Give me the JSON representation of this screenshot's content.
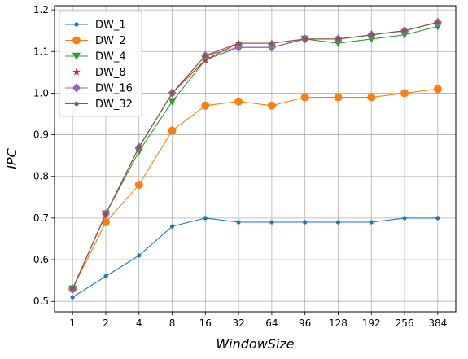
{
  "chart_data": {
    "type": "line",
    "title": "",
    "xlabel": "WindowSize",
    "ylabel": "IPC",
    "categories": [
      "1",
      "2",
      "4",
      "8",
      "16",
      "32",
      "64",
      "96",
      "128",
      "192",
      "256",
      "384"
    ],
    "ylim": [
      0.475,
      1.21
    ],
    "yticks": [
      0.5,
      0.6,
      0.7,
      0.8,
      0.9,
      1.0,
      1.1,
      1.2
    ],
    "ytick_labels": [
      "0.5",
      "0.6",
      "0.7",
      "0.8",
      "0.9",
      "1.0",
      "1.1",
      "1.2"
    ],
    "grid": true,
    "legend_position": "top-left",
    "series": [
      {
        "name": "DW_1",
        "color": "#1f77b4",
        "marker": "point",
        "values": [
          0.51,
          0.56,
          0.61,
          0.68,
          0.7,
          0.69,
          0.69,
          0.69,
          0.69,
          0.69,
          0.7,
          0.7
        ]
      },
      {
        "name": "DW_2",
        "color": "#ff7f0e",
        "marker": "circle",
        "values": [
          0.53,
          0.69,
          0.78,
          0.91,
          0.97,
          0.98,
          0.97,
          0.99,
          0.99,
          0.99,
          1.0,
          1.01
        ]
      },
      {
        "name": "DW_4",
        "color": "#2ca02c",
        "marker": "triangle",
        "values": [
          0.53,
          0.71,
          0.86,
          0.98,
          1.08,
          1.11,
          1.11,
          1.13,
          1.12,
          1.13,
          1.14,
          1.16
        ]
      },
      {
        "name": "DW_8",
        "color": "#d62728",
        "marker": "star",
        "values": [
          0.53,
          0.71,
          0.87,
          1.0,
          1.08,
          1.12,
          1.12,
          1.13,
          1.13,
          1.14,
          1.15,
          1.17
        ]
      },
      {
        "name": "DW_16",
        "color": "#9467bd",
        "marker": "diamond",
        "values": [
          0.53,
          0.71,
          0.87,
          1.0,
          1.09,
          1.11,
          1.11,
          1.13,
          1.13,
          1.14,
          1.15,
          1.17
        ]
      },
      {
        "name": "DW_32",
        "color": "#8c564b",
        "marker": "hexagon",
        "values": [
          0.53,
          0.71,
          0.87,
          1.0,
          1.09,
          1.12,
          1.12,
          1.13,
          1.13,
          1.14,
          1.15,
          1.17
        ]
      }
    ]
  }
}
